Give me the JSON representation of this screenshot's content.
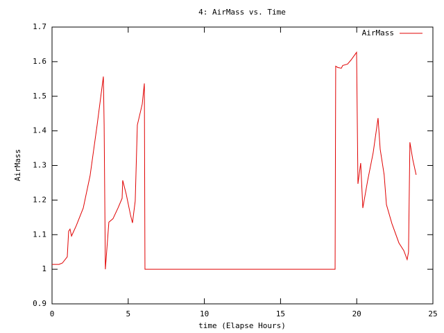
{
  "chart_data": {
    "type": "line",
    "title": "4: AirMass vs. Time",
    "x_label": "time (Elapse Hours)",
    "y_label": "AirMass",
    "xlim": [
      0,
      25
    ],
    "ylim": [
      0.9,
      1.7
    ],
    "xticks": [
      0,
      5,
      10,
      15,
      20,
      25
    ],
    "yticks": [
      0.9,
      1,
      1.1,
      1.2,
      1.3,
      1.4,
      1.5,
      1.6,
      1.7
    ],
    "legend": "top-right",
    "series": [
      {
        "name": "AirMass",
        "color": "#e00000",
        "x": [
          0,
          0.46,
          0.68,
          1.0,
          1.09,
          1.18,
          1.28,
          1.59,
          2.05,
          2.5,
          2.96,
          3.37,
          3.42,
          3.5,
          3.73,
          4.0,
          4.33,
          4.6,
          4.64,
          4.87,
          5.15,
          5.28,
          5.46,
          5.6,
          5.92,
          6.06,
          6.1,
          18.58,
          18.62,
          18.76,
          18.99,
          19.08,
          19.4,
          19.63,
          19.99,
          20.08,
          20.26,
          20.4,
          20.72,
          21.08,
          21.4,
          21.54,
          21.8,
          21.95,
          22.31,
          22.77,
          23.09,
          23.31,
          23.4,
          23.49,
          23.68,
          23.9
        ],
        "values": [
          1.014,
          1.014,
          1.018,
          1.036,
          1.11,
          1.116,
          1.096,
          1.126,
          1.177,
          1.271,
          1.417,
          1.557,
          1.417,
          1.0,
          1.136,
          1.146,
          1.177,
          1.205,
          1.257,
          1.217,
          1.157,
          1.134,
          1.197,
          1.417,
          1.477,
          1.537,
          1.0,
          1.0,
          1.587,
          1.583,
          1.581,
          1.589,
          1.593,
          1.605,
          1.627,
          1.247,
          1.307,
          1.177,
          1.257,
          1.337,
          1.437,
          1.347,
          1.273,
          1.187,
          1.132,
          1.076,
          1.054,
          1.028,
          1.05,
          1.367,
          1.317,
          1.273
        ]
      }
    ]
  }
}
